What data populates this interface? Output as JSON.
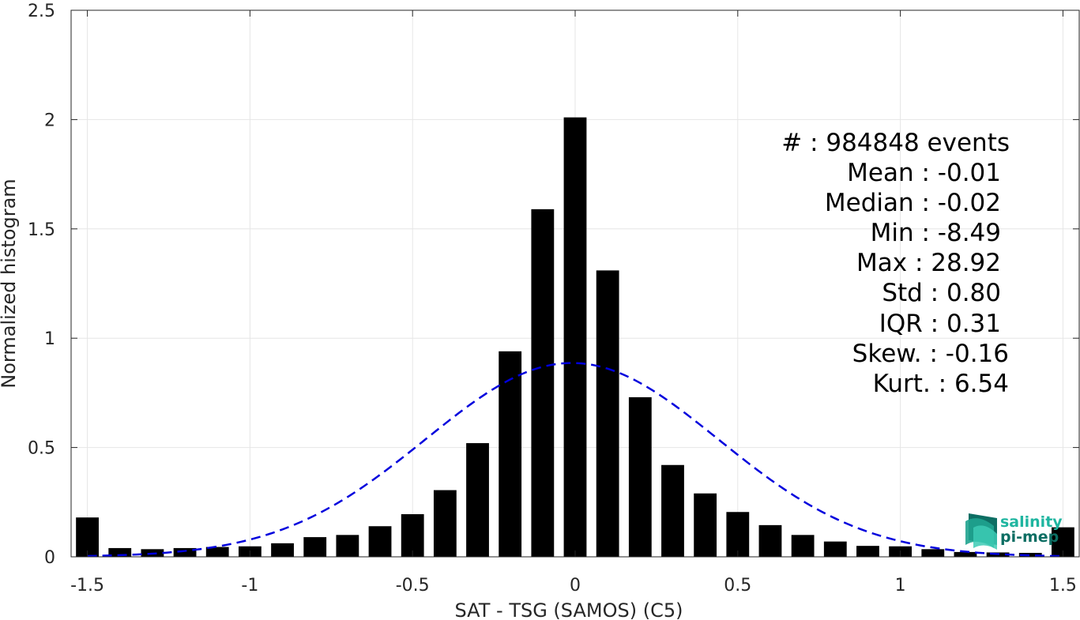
{
  "chart_data": {
    "type": "bar",
    "title": "",
    "xlabel": "SAT - TSG (SAMOS) (C5)",
    "ylabel": "Normalized histogram",
    "xlim": [
      -1.55,
      1.55
    ],
    "ylim": [
      0,
      2.5
    ],
    "grid": true,
    "bin_width": 0.1,
    "x": [
      -1.5,
      -1.4,
      -1.3,
      -1.2,
      -1.1,
      -1.0,
      -0.9,
      -0.8,
      -0.7,
      -0.6,
      -0.5,
      -0.4,
      -0.3,
      -0.2,
      -0.1,
      0.0,
      0.1,
      0.2,
      0.3,
      0.4,
      0.5,
      0.6,
      0.7,
      0.8,
      0.9,
      1.0,
      1.1,
      1.2,
      1.3,
      1.4,
      1.5
    ],
    "values": [
      0.18,
      0.04,
      0.035,
      0.04,
      0.045,
      0.048,
      0.062,
      0.09,
      0.1,
      0.14,
      0.195,
      0.305,
      0.52,
      0.94,
      1.59,
      2.01,
      1.31,
      0.73,
      0.42,
      0.29,
      0.205,
      0.145,
      0.1,
      0.07,
      0.05,
      0.048,
      0.035,
      0.022,
      0.02,
      0.018,
      0.135
    ],
    "xticks": [
      -1.5,
      -1,
      -0.5,
      0,
      0.5,
      1,
      1.5
    ],
    "xtick_labels": [
      "-1.5",
      "-1",
      "-0.5",
      "0",
      "0.5",
      "1",
      "1.5"
    ],
    "yticks": [
      0,
      0.5,
      1,
      1.5,
      2,
      2.5
    ],
    "ytick_labels": [
      "0",
      "0.5",
      "1",
      "1.5",
      "2",
      "2.5"
    ],
    "bar_color": "#000000",
    "fit_curve": {
      "style": "dashed",
      "color": "#0000dd",
      "distribution": "normal",
      "mean": -0.01,
      "std": 0.45
    }
  },
  "stats": {
    "count": "#  : 984848 events",
    "mean": "Mean : -0.01",
    "median": "Median : -0.02",
    "min": "Min : -8.49",
    "max": "Max : 28.92",
    "std": "Std : 0.80",
    "iqr": "IQR : 0.31",
    "skew": "Skew. : -0.16",
    "kurt": "Kurt. : 6.54"
  },
  "logo": {
    "line1": "salinity",
    "line2": "pi-mep",
    "color1": "#1fb5a0",
    "color2": "#0d6e63"
  }
}
